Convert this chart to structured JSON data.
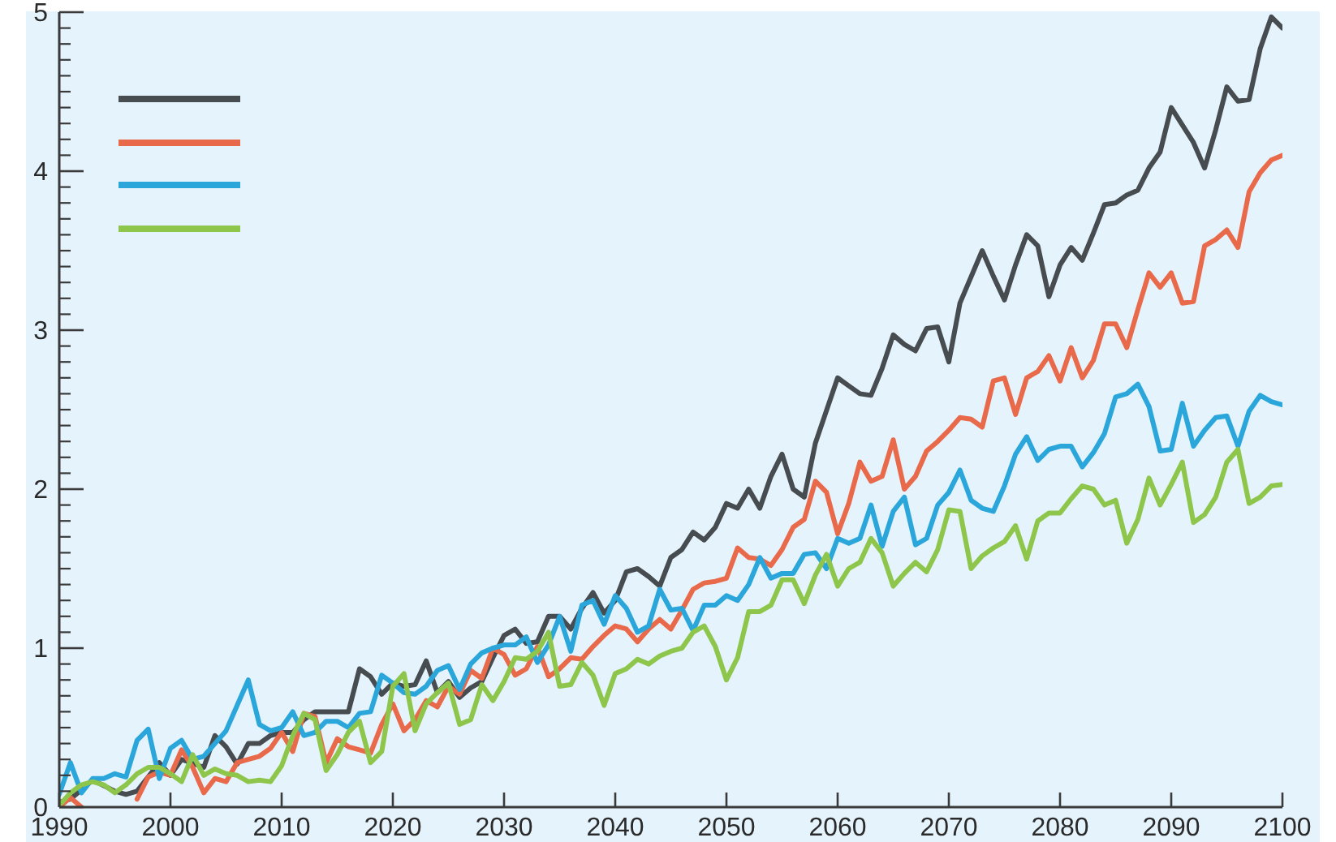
{
  "chart_data": {
    "type": "line",
    "xlim": [
      1990,
      2100
    ],
    "xticks": [
      1990,
      2000,
      2010,
      2020,
      2030,
      2040,
      2050,
      2060,
      2070,
      2080,
      2090,
      2100
    ],
    "ylim": [
      0,
      5
    ],
    "yticks": [
      0,
      {
        "value": 0.1,
        "label": null
      },
      {
        "value": 0.2,
        "label": null
      },
      {
        "value": 0.3,
        "label": null
      },
      {
        "value": 0.4,
        "label": null
      },
      {
        "value": 0.5,
        "label": null
      },
      {
        "value": 0.6,
        "label": null
      },
      {
        "value": 0.7,
        "label": null
      },
      {
        "value": 0.8,
        "label": null
      },
      {
        "value": 0.9,
        "label": null
      },
      1,
      {
        "value": 1.1,
        "label": null
      },
      {
        "value": 1.2,
        "label": null
      },
      {
        "value": 1.3,
        "label": null
      },
      {
        "value": 1.4,
        "label": null
      },
      {
        "value": 1.5,
        "label": null
      },
      {
        "value": 1.6,
        "label": null
      },
      {
        "value": 1.7,
        "label": null
      },
      {
        "value": 1.8,
        "label": null
      },
      {
        "value": 1.9,
        "label": null
      },
      2,
      {
        "value": 2.1,
        "label": null
      },
      {
        "value": 2.2,
        "label": null
      },
      {
        "value": 2.3,
        "label": null
      },
      {
        "value": 2.4,
        "label": null
      },
      {
        "value": 2.5,
        "label": null
      },
      {
        "value": 2.6,
        "label": null
      },
      {
        "value": 2.7,
        "label": null
      },
      {
        "value": 2.8,
        "label": null
      },
      {
        "value": 2.9,
        "label": null
      },
      3,
      {
        "value": 3.1,
        "label": null
      },
      {
        "value": 3.2,
        "label": null
      },
      {
        "value": 3.3,
        "label": null
      },
      {
        "value": 3.4,
        "label": null
      },
      {
        "value": 3.5,
        "label": null
      },
      {
        "value": 3.6,
        "label": null
      },
      {
        "value": 3.7,
        "label": null
      },
      {
        "value": 3.8,
        "label": null
      },
      {
        "value": 3.9,
        "label": null
      },
      4,
      {
        "value": 4.1,
        "label": null
      },
      {
        "value": 4.2,
        "label": null
      },
      {
        "value": 4.3,
        "label": null
      },
      {
        "value": 4.4,
        "label": null
      },
      {
        "value": 4.5,
        "label": null
      },
      {
        "value": 4.6,
        "label": null
      },
      {
        "value": 4.7,
        "label": null
      },
      {
        "value": 4.8,
        "label": null
      },
      {
        "value": 4.9,
        "label": null
      },
      5
    ],
    "series": [
      {
        "color": "#464c50",
        "x": [
          1990,
          1991,
          1993,
          1995,
          1996,
          1997,
          1999,
          2000,
          2001,
          2003,
          2004,
          2005,
          2006,
          2007,
          2008,
          2009,
          2010,
          2011,
          2012,
          2013,
          2014,
          2016,
          2017,
          2018,
          2019,
          2020,
          2021,
          2022,
          2023,
          2024,
          2025,
          2026,
          2027,
          2028,
          2029,
          2030,
          2031,
          2032,
          2033,
          2034,
          2035,
          2036,
          2037,
          2038,
          2039,
          2040,
          2041,
          2042,
          2043,
          2044,
          2045,
          2046,
          2047,
          2048,
          2049,
          2050,
          2051,
          2052,
          2053,
          2054,
          2055,
          2056,
          2057,
          2058,
          2060,
          2061,
          2062,
          2063,
          2064,
          2065,
          2066,
          2067,
          2068,
          2069,
          2070,
          2071,
          2073,
          2074,
          2075,
          2076,
          2077,
          2078,
          2079,
          2080,
          2081,
          2082,
          2083,
          2084,
          2085,
          2086,
          2087,
          2088,
          2089,
          2090,
          2091,
          2092,
          2093,
          2094,
          2095,
          2096,
          2097,
          2098,
          2099,
          2100
        ],
        "values": [
          0.03,
          0.05,
          0.17,
          0.1,
          0.08,
          0.1,
          0.28,
          0.2,
          0.3,
          0.25,
          0.45,
          0.38,
          0.27,
          0.4,
          0.4,
          0.45,
          0.47,
          0.47,
          0.55,
          0.6,
          0.6,
          0.6,
          0.87,
          0.82,
          0.71,
          0.78,
          0.76,
          0.77,
          0.92,
          0.72,
          0.79,
          0.69,
          0.75,
          0.79,
          0.94,
          1.08,
          1.12,
          1.03,
          1.04,
          1.2,
          1.2,
          1.12,
          1.25,
          1.35,
          1.22,
          1.3,
          1.48,
          1.5,
          1.45,
          1.39,
          1.57,
          1.62,
          1.73,
          1.68,
          1.76,
          1.91,
          1.88,
          2.0,
          1.88,
          2.08,
          2.22,
          2.0,
          1.95,
          2.29,
          2.7,
          2.65,
          2.6,
          2.59,
          2.76,
          2.97,
          2.91,
          2.87,
          3.01,
          3.02,
          2.8,
          3.17,
          3.5,
          3.34,
          3.19,
          3.41,
          3.6,
          3.53,
          3.21,
          3.41,
          3.52,
          3.44,
          3.61,
          3.79,
          3.8,
          3.85,
          3.88,
          4.02,
          4.12,
          4.4,
          4.29,
          4.18,
          4.02,
          4.26,
          4.53,
          4.44,
          4.45,
          4.77,
          4.97,
          4.9
        ]
      },
      {
        "color": "#e96a4a",
        "x": [
          1990,
          1991,
          1992,
          1993,
          1997,
          1998,
          1999,
          2000,
          2001,
          2002,
          2003,
          2004,
          2005,
          2006,
          2007,
          2008,
          2009,
          2010,
          2011,
          2012,
          2013,
          2014,
          2015,
          2016,
          2017,
          2018,
          2019,
          2020,
          2021,
          2022,
          2023,
          2024,
          2025,
          2026,
          2027,
          2028,
          2029,
          2030,
          2031,
          2032,
          2033,
          2034,
          2035,
          2036,
          2037,
          2038,
          2039,
          2040,
          2041,
          2042,
          2043,
          2044,
          2045,
          2046,
          2047,
          2048,
          2049,
          2050,
          2051,
          2052,
          2053,
          2054,
          2055,
          2056,
          2057,
          2058,
          2059,
          2060,
          2061,
          2062,
          2063,
          2064,
          2065,
          2066,
          2067,
          2068,
          2069,
          2070,
          2071,
          2072,
          2073,
          2074,
          2075,
          2076,
          2077,
          2078,
          2079,
          2080,
          2081,
          2082,
          2083,
          2084,
          2085,
          2086,
          2087,
          2088,
          2089,
          2090,
          2091,
          2092,
          2093,
          2094,
          2095,
          2096,
          2097,
          2098,
          2099,
          2100
        ],
        "values": [
          0,
          0.06,
          0,
          null,
          0.05,
          0.19,
          0.22,
          0.2,
          0.36,
          0.25,
          0.09,
          0.18,
          0.16,
          0.28,
          0.3,
          0.32,
          0.37,
          0.47,
          0.35,
          0.59,
          0.57,
          0.28,
          0.43,
          0.38,
          0.36,
          0.34,
          0.52,
          0.65,
          0.48,
          0.55,
          0.67,
          0.63,
          0.76,
          0.71,
          0.86,
          0.81,
          1.0,
          0.96,
          0.83,
          0.87,
          1.01,
          0.82,
          0.87,
          0.94,
          0.93,
          1.01,
          1.08,
          1.14,
          1.12,
          1.04,
          1.12,
          1.18,
          1.12,
          1.24,
          1.37,
          1.41,
          1.42,
          1.44,
          1.63,
          1.57,
          1.56,
          1.52,
          1.62,
          1.76,
          1.81,
          2.05,
          1.98,
          1.72,
          1.91,
          2.17,
          2.05,
          2.08,
          2.31,
          2.0,
          2.08,
          2.24,
          2.3,
          2.37,
          2.45,
          2.44,
          2.39,
          2.68,
          2.7,
          2.47,
          2.7,
          2.74,
          2.84,
          2.68,
          2.89,
          2.7,
          2.81,
          3.04,
          3.04,
          2.89,
          3.13,
          3.36,
          3.27,
          3.36,
          3.17,
          3.18,
          3.53,
          3.57,
          3.63,
          3.52,
          3.87,
          3.99,
          4.07,
          4.1
        ]
      },
      {
        "color": "#2ba6db",
        "x": [
          1990,
          1991,
          1992,
          1993,
          1994,
          1995,
          1996,
          1997,
          1998,
          1999,
          2000,
          2001,
          2002,
          2003,
          2004,
          2005,
          2006,
          2007,
          2008,
          2009,
          2010,
          2011,
          2012,
          2013,
          2014,
          2015,
          2016,
          2017,
          2018,
          2019,
          2020,
          2021,
          2022,
          2023,
          2024,
          2025,
          2026,
          2027,
          2028,
          2029,
          2030,
          2031,
          2032,
          2033,
          2034,
          2035,
          2036,
          2037,
          2038,
          2039,
          2040,
          2041,
          2042,
          2043,
          2044,
          2045,
          2046,
          2047,
          2048,
          2049,
          2050,
          2051,
          2052,
          2053,
          2054,
          2055,
          2056,
          2057,
          2058,
          2059,
          2060,
          2061,
          2062,
          2063,
          2064,
          2065,
          2066,
          2067,
          2068,
          2069,
          2070,
          2071,
          2072,
          2073,
          2074,
          2075,
          2076,
          2077,
          2078,
          2079,
          2080,
          2081,
          2082,
          2083,
          2084,
          2085,
          2086,
          2087,
          2088,
          2089,
          2090,
          2091,
          2092,
          2093,
          2094,
          2095,
          2096,
          2097,
          2098,
          2099,
          2100
        ],
        "values": [
          0.08,
          0.28,
          0.09,
          0.18,
          0.18,
          0.21,
          0.19,
          0.42,
          0.49,
          0.18,
          0.37,
          0.42,
          0.3,
          0.32,
          0.4,
          0.48,
          0.64,
          0.8,
          0.52,
          0.48,
          0.5,
          0.6,
          0.45,
          0.47,
          0.54,
          0.54,
          0.5,
          0.59,
          0.6,
          0.83,
          0.78,
          0.72,
          0.71,
          0.76,
          0.86,
          0.89,
          0.74,
          0.9,
          0.97,
          1.0,
          1.02,
          1.02,
          1.07,
          0.91,
          1.02,
          1.2,
          0.98,
          1.27,
          1.3,
          1.15,
          1.33,
          1.25,
          1.1,
          1.14,
          1.37,
          1.24,
          1.25,
          1.11,
          1.27,
          1.27,
          1.33,
          1.3,
          1.4,
          1.57,
          1.44,
          1.47,
          1.47,
          1.59,
          1.6,
          1.5,
          1.69,
          1.66,
          1.69,
          1.9,
          1.64,
          1.86,
          1.95,
          1.65,
          1.69,
          1.9,
          1.98,
          2.12,
          1.93,
          1.88,
          1.86,
          2.02,
          2.22,
          2.33,
          2.18,
          2.25,
          2.27,
          2.27,
          2.14,
          2.23,
          2.35,
          2.58,
          2.6,
          2.66,
          2.52,
          2.24,
          2.25,
          2.54,
          2.27,
          2.37,
          2.45,
          2.46,
          2.27,
          2.49,
          2.59,
          2.55,
          2.53
        ]
      },
      {
        "color": "#8dc64b",
        "x": [
          1990,
          1991,
          1992,
          1993,
          1994,
          1995,
          1996,
          1997,
          1998,
          1999,
          2000,
          2001,
          2002,
          2003,
          2004,
          2005,
          2006,
          2007,
          2008,
          2009,
          2010,
          2011,
          2012,
          2013,
          2014,
          2015,
          2016,
          2017,
          2018,
          2019,
          2020,
          2021,
          2022,
          2023,
          2024,
          2025,
          2026,
          2027,
          2028,
          2029,
          2030,
          2031,
          2032,
          2033,
          2034,
          2035,
          2036,
          2037,
          2038,
          2039,
          2040,
          2041,
          2042,
          2043,
          2044,
          2045,
          2046,
          2047,
          2048,
          2049,
          2050,
          2051,
          2052,
          2053,
          2054,
          2055,
          2056,
          2057,
          2058,
          2059,
          2060,
          2061,
          2062,
          2063,
          2064,
          2065,
          2066,
          2067,
          2068,
          2069,
          2070,
          2071,
          2072,
          2073,
          2074,
          2075,
          2076,
          2077,
          2078,
          2079,
          2080,
          2081,
          2082,
          2083,
          2084,
          2085,
          2086,
          2087,
          2088,
          2089,
          2090,
          2091,
          2092,
          2093,
          2094,
          2095,
          2096,
          2097,
          2098,
          2099,
          2100
        ],
        "values": [
          0.01,
          0.09,
          0.14,
          0.16,
          0.14,
          0.09,
          0.14,
          0.21,
          0.25,
          0.25,
          0.21,
          0.16,
          0.33,
          0.2,
          0.24,
          0.21,
          0.2,
          0.16,
          0.17,
          0.16,
          0.26,
          0.45,
          0.59,
          0.55,
          0.23,
          0.33,
          0.47,
          0.54,
          0.28,
          0.35,
          0.76,
          0.84,
          0.48,
          0.65,
          0.72,
          0.78,
          0.52,
          0.55,
          0.77,
          0.67,
          0.79,
          0.94,
          0.93,
          0.98,
          1.1,
          0.76,
          0.77,
          0.91,
          0.83,
          0.64,
          0.84,
          0.87,
          0.93,
          0.9,
          0.95,
          0.98,
          1.0,
          1.1,
          1.14,
          1.01,
          0.8,
          0.94,
          1.23,
          1.23,
          1.27,
          1.43,
          1.43,
          1.28,
          1.46,
          1.59,
          1.39,
          1.5,
          1.54,
          1.69,
          1.6,
          1.39,
          1.47,
          1.54,
          1.48,
          1.62,
          1.87,
          1.86,
          1.5,
          1.58,
          1.63,
          1.67,
          1.77,
          1.56,
          1.8,
          1.85,
          1.85,
          1.94,
          2.02,
          2.0,
          1.9,
          1.93,
          1.66,
          1.81,
          2.07,
          1.9,
          2.03,
          2.17,
          1.79,
          1.84,
          1.95,
          2.17,
          2.25,
          1.91,
          1.95,
          2.02,
          2.03
        ]
      }
    ]
  }
}
